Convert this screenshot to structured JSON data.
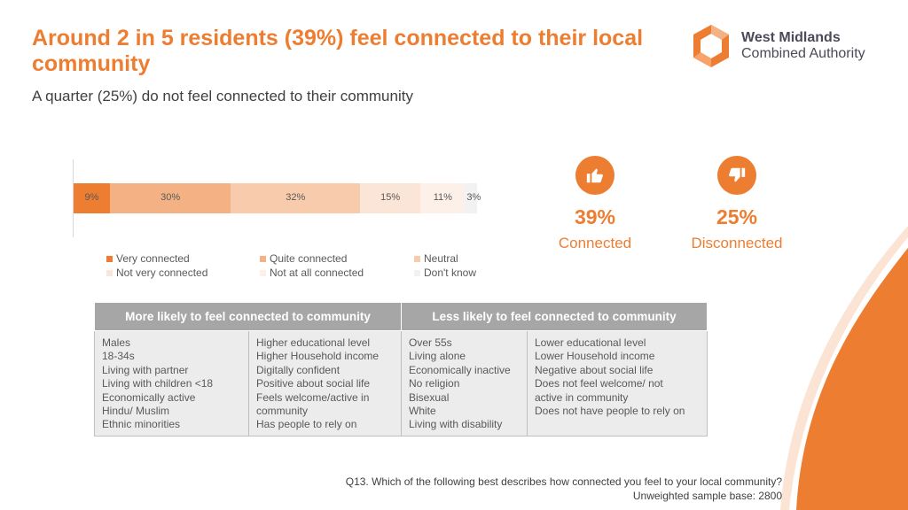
{
  "header": {
    "title": "Around 2 in 5 residents (39%) feel connected to their local community",
    "subtitle": "A quarter (25%) do not feel connected to their community"
  },
  "logo": {
    "line1": "West Midlands",
    "line2": "Combined Authority"
  },
  "colors": {
    "accent": "#ed7d31",
    "header_gray": "#a6a6a6",
    "cell_gray": "#ececec"
  },
  "chart_data": {
    "type": "bar",
    "orientation": "horizontal",
    "stacked": true,
    "categories": [
      ""
    ],
    "series": [
      {
        "name": "Very connected",
        "values": [
          9
        ],
        "color": "#ed7d31"
      },
      {
        "name": "Quite connected",
        "values": [
          30
        ],
        "color": "#f4b183"
      },
      {
        "name": "Neutral",
        "values": [
          32
        ],
        "color": "#f8cbad"
      },
      {
        "name": "Not very connected",
        "values": [
          15
        ],
        "color": "#fbe5d6"
      },
      {
        "name": "Not at all connected",
        "values": [
          11
        ],
        "color": "#fdf0e8"
      },
      {
        "name": "Don't know",
        "values": [
          3
        ],
        "color": "#f2f2f2"
      }
    ],
    "data_labels": [
      "9%",
      "30%",
      "32%",
      "15%",
      "11%",
      "3%"
    ],
    "legend_position": "bottom",
    "xlim": [
      0,
      100
    ],
    "grid": false
  },
  "kpis": [
    {
      "icon": "thumbs-up-icon",
      "value": "39%",
      "label": "Connected"
    },
    {
      "icon": "thumbs-down-icon",
      "value": "25%",
      "label": "Disconnected"
    }
  ],
  "table": {
    "headers": [
      "More likely to feel connected to community",
      "Less likely to feel connected to community"
    ],
    "columns": [
      [
        "Males",
        "18-34s",
        "Living with partner",
        "Living with children <18",
        "Economically active",
        "Hindu/ Muslim",
        "Ethnic minorities"
      ],
      [
        "Higher educational level",
        "Higher Household income",
        "Digitally confident",
        "Positive about social life",
        "Feels welcome/active in",
        "community",
        "Has people to rely on"
      ],
      [
        "Over 55s",
        "Living alone",
        "Economically inactive",
        "No religion",
        "Bisexual",
        "White",
        "Living with disability"
      ],
      [
        "Lower educational level",
        "Lower Household income",
        "Negative about social life",
        "Does not feel welcome/ not",
        "active in community",
        "Does not have people to rely on"
      ]
    ]
  },
  "footnote": {
    "question": "Q13. Which of the following best describes how connected you feel to your local community?",
    "base": "Unweighted sample base: 2800"
  }
}
